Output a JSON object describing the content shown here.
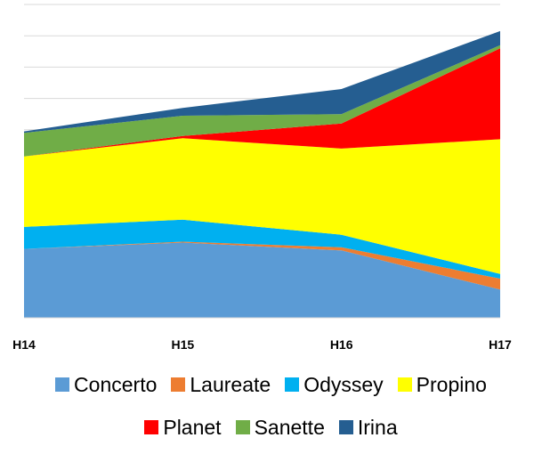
{
  "chart_data": {
    "type": "area",
    "stacked": true,
    "grid": true,
    "legend_position": "bottom",
    "categories": [
      "H14",
      "H15",
      "H16",
      "H17"
    ],
    "ylim": [
      0,
      100
    ],
    "series": [
      {
        "name": "Concerto",
        "color": "#5b9bd5",
        "values": [
          22,
          24,
          21.5,
          9
        ]
      },
      {
        "name": "Laureate",
        "color": "#ed7d31",
        "values": [
          0,
          0.3,
          1,
          3.5
        ]
      },
      {
        "name": "Odyssey",
        "color": "#00b0f0",
        "values": [
          7,
          7,
          4,
          1.5
        ]
      },
      {
        "name": "Propino",
        "color": "#ffff00",
        "values": [
          22.5,
          26,
          27.5,
          43
        ]
      },
      {
        "name": "Planet",
        "color": "#ff0000",
        "values": [
          0,
          0.7,
          8,
          29
        ]
      },
      {
        "name": "Sanette",
        "color": "#70ad47",
        "values": [
          7.5,
          6.5,
          3,
          1
        ]
      },
      {
        "name": "Irina",
        "color": "#255e91",
        "values": [
          0.5,
          2.5,
          8,
          4.5
        ]
      }
    ]
  }
}
